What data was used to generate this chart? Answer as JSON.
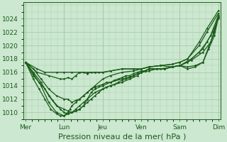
{
  "title": "",
  "xlabel": "Pression niveau de la mer( hPa )",
  "ylabel": "",
  "background_color": "#cce8d0",
  "grid_color": "#aaccaa",
  "line_color": "#1a5c1a",
  "ylim": [
    1009,
    1026.5
  ],
  "yticks": [
    1010,
    1012,
    1014,
    1016,
    1018,
    1020,
    1022,
    1024
  ],
  "xtick_labels": [
    "Mer",
    "Lun",
    "Jeu",
    "Ven",
    "Sam",
    "Dim"
  ],
  "xtick_positions": [
    0,
    1,
    2,
    3,
    4,
    5
  ],
  "series": [
    {
      "x": [
        0,
        0.3,
        0.5,
        0.8,
        1.0,
        1.2,
        1.4,
        1.6,
        1.8,
        2.0,
        2.2,
        2.5,
        2.8,
        3.0,
        3.2,
        3.5,
        3.8,
        4.0,
        4.2,
        4.5,
        4.7,
        5.0
      ],
      "y": [
        1017.5,
        1016.5,
        1016.0,
        1016.0,
        1016.0,
        1016.0,
        1016.0,
        1016.0,
        1016.0,
        1016.0,
        1016.2,
        1016.5,
        1016.5,
        1016.5,
        1016.8,
        1017.0,
        1017.2,
        1017.5,
        1018.0,
        1020.5,
        1022.5,
        1025.2
      ]
    },
    {
      "x": [
        0,
        0.3,
        0.6,
        0.9,
        1.0,
        1.1,
        1.2,
        1.3,
        1.4,
        1.5,
        1.6,
        1.7,
        1.8,
        1.9,
        2.0,
        2.2,
        2.5,
        2.8,
        3.0,
        3.2,
        3.5,
        3.8,
        4.0,
        4.2,
        4.5,
        4.7,
        5.0
      ],
      "y": [
        1017.5,
        1016.0,
        1015.5,
        1015.0,
        1015.0,
        1015.2,
        1015.0,
        1015.5,
        1016.0,
        1016.0,
        1015.8,
        1016.0,
        1016.0,
        1016.0,
        1016.0,
        1016.2,
        1016.5,
        1016.5,
        1016.5,
        1016.8,
        1017.0,
        1017.2,
        1017.5,
        1018.0,
        1020.0,
        1022.0,
        1024.8
      ]
    },
    {
      "x": [
        0,
        0.2,
        0.4,
        0.6,
        0.8,
        1.0,
        1.1,
        1.2,
        1.3,
        1.4,
        1.5,
        1.6,
        1.7,
        1.8,
        2.0,
        2.2,
        2.5,
        2.8,
        3.0,
        3.2,
        3.5,
        3.8,
        4.0,
        4.3,
        4.6,
        4.8,
        5.0
      ],
      "y": [
        1017.5,
        1016.5,
        1015.0,
        1013.5,
        1012.5,
        1012.0,
        1012.0,
        1011.5,
        1011.8,
        1012.0,
        1012.5,
        1013.0,
        1013.5,
        1014.0,
        1015.0,
        1015.5,
        1016.0,
        1016.2,
        1016.5,
        1016.8,
        1017.0,
        1016.8,
        1017.0,
        1018.0,
        1019.5,
        1021.5,
        1024.5
      ]
    },
    {
      "x": [
        0,
        0.2,
        0.4,
        0.6,
        0.8,
        1.0,
        1.1,
        1.2,
        1.3,
        1.4,
        1.5,
        1.6,
        1.7,
        1.8,
        2.0,
        2.2,
        2.5,
        2.8,
        3.0,
        3.2,
        3.5,
        3.8,
        4.0,
        4.3,
        4.6,
        4.8,
        5.0
      ],
      "y": [
        1017.5,
        1016.0,
        1014.5,
        1012.5,
        1011.0,
        1010.5,
        1010.2,
        1010.0,
        1010.2,
        1010.5,
        1011.0,
        1012.0,
        1013.0,
        1013.5,
        1014.0,
        1014.5,
        1015.0,
        1015.5,
        1016.0,
        1016.5,
        1016.5,
        1016.8,
        1017.0,
        1017.8,
        1019.0,
        1020.5,
        1024.2
      ]
    },
    {
      "x": [
        0,
        0.2,
        0.4,
        0.6,
        0.8,
        1.0,
        1.1,
        1.2,
        1.3,
        1.4,
        1.5,
        1.6,
        1.8,
        2.0,
        2.2,
        2.5,
        2.7,
        2.9,
        3.0,
        3.2,
        3.4,
        3.6,
        3.8,
        4.0,
        4.2,
        4.5,
        4.7,
        4.85,
        5.0
      ],
      "y": [
        1017.5,
        1015.8,
        1014.0,
        1011.5,
        1010.0,
        1009.5,
        1009.8,
        1010.0,
        1010.5,
        1011.0,
        1011.5,
        1012.0,
        1013.0,
        1013.5,
        1014.0,
        1014.5,
        1015.0,
        1015.5,
        1016.0,
        1016.2,
        1016.5,
        1016.5,
        1016.8,
        1017.0,
        1017.5,
        1019.0,
        1020.5,
        1022.0,
        1024.0
      ]
    },
    {
      "x": [
        0,
        0.2,
        0.35,
        0.5,
        0.7,
        0.9,
        1.0,
        1.1,
        1.2,
        1.3,
        1.4,
        1.5,
        1.6,
        1.7,
        1.8,
        1.9,
        2.0,
        2.1,
        2.2,
        2.3,
        2.4,
        2.5,
        2.6,
        2.7,
        2.8,
        2.9,
        3.0,
        3.1,
        3.2,
        3.4,
        3.6,
        3.8,
        4.0,
        4.2,
        4.4,
        4.6,
        4.75,
        4.9,
        5.0
      ],
      "y": [
        1017.5,
        1015.5,
        1014.5,
        1013.5,
        1011.8,
        1010.5,
        1010.0,
        1009.8,
        1010.0,
        1010.2,
        1010.5,
        1011.0,
        1011.5,
        1012.0,
        1012.5,
        1013.0,
        1013.5,
        1013.8,
        1014.0,
        1014.2,
        1014.5,
        1014.8,
        1015.0,
        1015.2,
        1015.5,
        1015.8,
        1016.0,
        1016.2,
        1016.5,
        1016.5,
        1016.5,
        1016.8,
        1017.0,
        1016.8,
        1017.0,
        1017.5,
        1019.5,
        1021.5,
        1024.2
      ]
    },
    {
      "x": [
        0,
        0.2,
        0.35,
        0.5,
        0.65,
        0.8,
        0.9,
        1.0,
        1.05,
        1.1,
        1.15,
        1.2,
        1.3,
        1.4,
        1.5,
        1.6,
        1.7,
        1.8,
        1.9,
        2.0,
        2.1,
        2.2,
        2.3,
        2.4,
        2.5,
        2.6,
        2.7,
        2.8,
        2.9,
        3.0,
        3.1,
        3.2,
        3.4,
        3.6,
        3.8,
        4.0,
        4.2,
        4.4,
        4.6,
        4.75,
        4.9,
        5.0
      ],
      "y": [
        1017.5,
        1015.0,
        1013.5,
        1012.0,
        1010.5,
        1009.8,
        1009.5,
        1009.5,
        1009.8,
        1010.0,
        1010.5,
        1011.0,
        1011.5,
        1012.0,
        1012.5,
        1013.0,
        1013.5,
        1013.8,
        1014.0,
        1014.2,
        1014.5,
        1014.5,
        1014.8,
        1015.0,
        1015.2,
        1015.5,
        1015.5,
        1015.8,
        1016.0,
        1016.2,
        1016.2,
        1016.5,
        1016.5,
        1016.5,
        1016.8,
        1017.0,
        1016.5,
        1016.8,
        1017.5,
        1019.8,
        1022.0,
        1024.5
      ]
    }
  ],
  "marker": "D",
  "marker_size": 1.5,
  "line_width": 0.9,
  "xlabel_fontsize": 8,
  "tick_fontsize": 6.5,
  "figsize": [
    3.2,
    2.0
  ],
  "dpi": 100
}
